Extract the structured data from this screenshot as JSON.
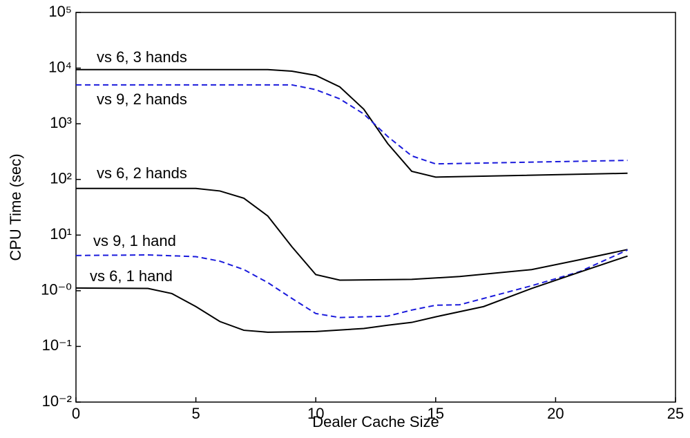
{
  "chart_data": {
    "type": "line",
    "xlabel": "Dealer Cache Size",
    "ylabel": "CPU Time (sec)",
    "xlim": [
      0,
      25
    ],
    "xticks": [
      0,
      5,
      10,
      15,
      20,
      25
    ],
    "ylim": [
      0.01,
      100000
    ],
    "yscale": "log",
    "yticks": [
      {
        "value": 100000,
        "label": "10⁵"
      },
      {
        "value": 10000,
        "label": "10⁴"
      },
      {
        "value": 1000,
        "label": "10³"
      },
      {
        "value": 100,
        "label": "10²"
      },
      {
        "value": 10,
        "label": "10¹"
      },
      {
        "value": 1,
        "label": "10⁻⁰"
      },
      {
        "value": 0.1,
        "label": "10⁻¹"
      },
      {
        "value": 0.01,
        "label": "10⁻²"
      }
    ],
    "series": [
      {
        "name": "vs 6, 3 hands",
        "color": "#000000",
        "style": "solid",
        "x": [
          0,
          8,
          9,
          10,
          11,
          12,
          13,
          14,
          15,
          23
        ],
        "values": [
          9400,
          9400,
          8800,
          7400,
          4600,
          1830,
          440,
          140,
          110,
          129
        ]
      },
      {
        "name": "vs 9, 2 hands",
        "color": "#1a1adc",
        "style": "dashed",
        "x": [
          0,
          9,
          10,
          11,
          12,
          13,
          14,
          15,
          23
        ],
        "values": [
          5000,
          5000,
          4100,
          2800,
          1500,
          590,
          265,
          190,
          220
        ]
      },
      {
        "name": "vs 6, 2 hands",
        "color": "#000000",
        "style": "solid",
        "x": [
          0,
          5,
          6,
          7,
          8,
          9,
          10,
          11,
          14,
          16,
          19,
          21,
          23
        ],
        "values": [
          69,
          69,
          62,
          46,
          22,
          6.2,
          1.95,
          1.55,
          1.6,
          1.8,
          2.4,
          3.6,
          5.5
        ]
      },
      {
        "name": "vs 9, 1 hand",
        "color": "#1a1adc",
        "style": "dashed",
        "x": [
          0,
          3,
          5,
          6,
          7,
          8,
          9,
          10,
          11,
          13,
          14,
          15,
          16,
          19,
          21,
          23
        ],
        "values": [
          4.3,
          4.4,
          4.1,
          3.4,
          2.4,
          1.4,
          0.73,
          0.39,
          0.33,
          0.35,
          0.45,
          0.55,
          0.56,
          1.23,
          2.2,
          5.4
        ]
      },
      {
        "name": "vs 6, 1 hand",
        "color": "#000000",
        "style": "solid",
        "x": [
          0,
          3,
          4,
          5,
          6,
          7,
          8,
          10,
          12,
          13,
          14,
          15,
          17,
          19,
          21,
          23
        ],
        "values": [
          1.12,
          1.1,
          0.89,
          0.52,
          0.28,
          0.195,
          0.18,
          0.185,
          0.21,
          0.24,
          0.27,
          0.34,
          0.52,
          1.1,
          2.16,
          4.2
        ]
      }
    ]
  }
}
